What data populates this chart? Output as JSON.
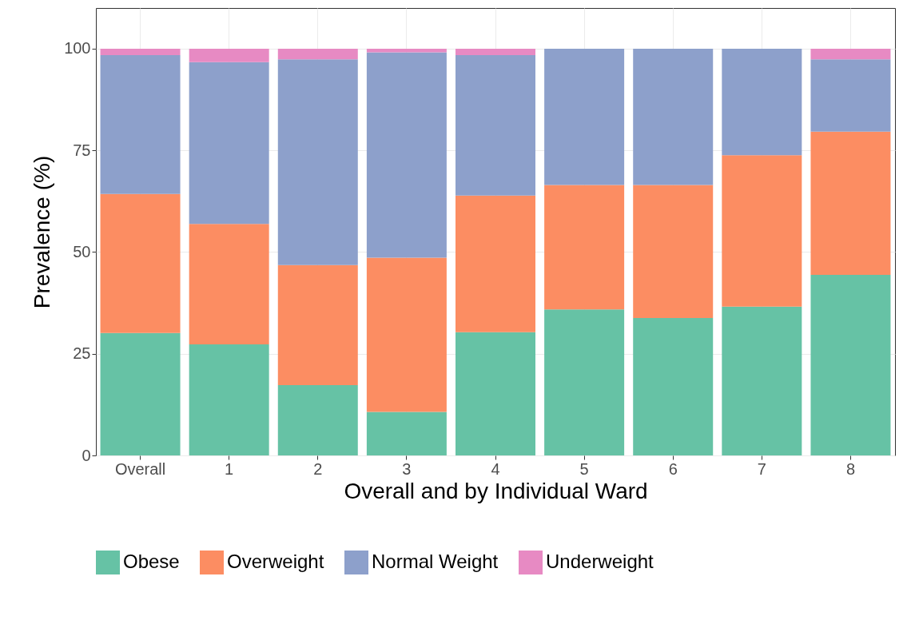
{
  "chart_data": {
    "type": "bar",
    "stacked": true,
    "xlabel": "Overall and by Individual Ward",
    "ylabel": "Prevalence (%)",
    "categories": [
      "Overall",
      "1",
      "2",
      "3",
      "4",
      "5",
      "6",
      "7",
      "8"
    ],
    "series": [
      {
        "name": "Obese",
        "color": "#66c2a5",
        "values": [
          30.1,
          27.3,
          17.3,
          10.7,
          30.3,
          35.9,
          33.8,
          36.6,
          44.4
        ]
      },
      {
        "name": "Overweight",
        "color": "#fc8d62",
        "values": [
          34.2,
          29.6,
          29.5,
          37.9,
          33.6,
          30.6,
          32.7,
          37.2,
          35.2
        ]
      },
      {
        "name": "Normal Weight",
        "color": "#8da0cb",
        "values": [
          34.1,
          39.8,
          50.6,
          50.5,
          34.5,
          33.5,
          33.5,
          26.2,
          17.8
        ]
      },
      {
        "name": "Underweight",
        "color": "#e78ac3",
        "values": [
          1.6,
          3.3,
          2.6,
          0.9,
          1.6,
          0,
          0,
          0,
          2.6
        ]
      }
    ],
    "ylim": [
      0,
      110
    ],
    "yticks": [
      0,
      25,
      50,
      75,
      100
    ],
    "grid": true,
    "legend": "bottom"
  }
}
